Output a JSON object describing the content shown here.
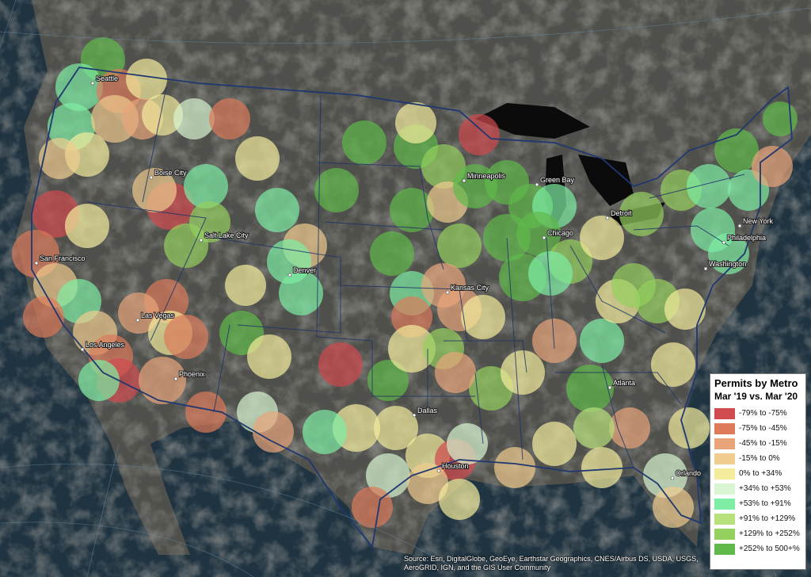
{
  "legend": {
    "title": "Permits by Metro",
    "subtitle": "Mar '19 vs. Mar '20",
    "items": [
      {
        "label": "-79% to -75%",
        "color": "#d04a4e"
      },
      {
        "label": "-75% to -45%",
        "color": "#dc7a5a"
      },
      {
        "label": "-45% to -15%",
        "color": "#e8a57a"
      },
      {
        "label": "-15% to 0%",
        "color": "#f0cc8e"
      },
      {
        "label": "0% to +34%",
        "color": "#f4ec9c"
      },
      {
        "label": "+34% to +53%",
        "color": "#d9f5d2"
      },
      {
        "label": "+53% to +91%",
        "color": "#7eeea4"
      },
      {
        "label": "+91% to +129%",
        "color": "#b6e07a"
      },
      {
        "label": "+129% to +252%",
        "color": "#94d05e"
      },
      {
        "label": "+252% to 500+%",
        "color": "#5fb94a"
      }
    ]
  },
  "cities": [
    "Seattle",
    "Boise City",
    "Salt Lake City",
    "San Francisco",
    "Las Vegas",
    "Los Angeles",
    "Phoenix",
    "Denver",
    "Minneapolis",
    "Green Bay",
    "Kansas City",
    "Chicago",
    "Detroit",
    "New York",
    "Philadelphia",
    "Washington",
    "Atlanta",
    "Dallas",
    "Houston",
    "Orlando"
  ],
  "attribution": "Source: Esri, DigitalGlobe, GeoEye, Earthstar Geographics, CNES/Airbus DS, USDA, USGS, AeroGRID, IGN, and the GIS User Community"
}
